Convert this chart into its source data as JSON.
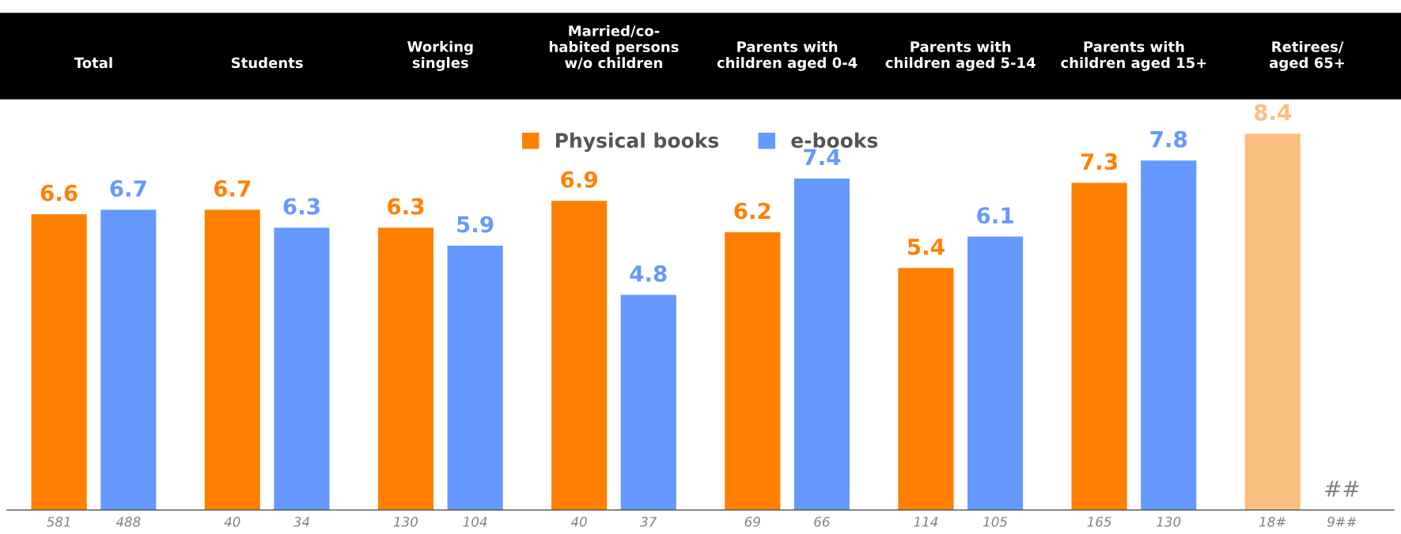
{
  "chart_data": {
    "type": "bar",
    "categories": [
      "Total",
      "Students",
      "Working\nsingles",
      "Married/co-\nhabited persons\nw/o children",
      "Parents with\nchildren aged 0-4",
      "Parents with\nchildren aged 5-14",
      "Parents with\nchildren aged 15+",
      "Retirees/\naged 65+"
    ],
    "series": [
      {
        "name": "Physical books",
        "color": "#ff8000",
        "colors": [
          "#ff8000",
          "#ff8000",
          "#ff8000",
          "#ff8000",
          "#ff8000",
          "#ff8000",
          "#ff8000",
          "#fbbf80"
        ],
        "values": [
          6.6,
          6.7,
          6.3,
          6.9,
          6.2,
          5.4,
          7.3,
          8.4
        ],
        "value_labels": [
          "6.6",
          "6.7",
          "6.3",
          "6.9",
          "6.2",
          "5.4",
          "7.3",
          "8.4"
        ]
      },
      {
        "name": "e-books",
        "color": "#6699ff",
        "colors": [
          "#6699ff",
          "#6699ff",
          "#6699ff",
          "#6699ff",
          "#6699ff",
          "#6699ff",
          "#6699ff",
          "#6699ff"
        ],
        "values": [
          6.7,
          6.3,
          5.9,
          4.8,
          7.4,
          6.1,
          7.8,
          null
        ],
        "value_labels": [
          "6.7",
          "6.3",
          "5.9",
          "4.8",
          "7.4",
          "6.1",
          "7.8",
          "##"
        ]
      }
    ],
    "annotations": [
      "581",
      "488",
      "40",
      "34",
      "130",
      "104",
      "40",
      "37",
      "69",
      "66",
      "114",
      "105",
      "165",
      "130",
      "18#",
      "9##"
    ],
    "legend": "top",
    "grid": false
  }
}
